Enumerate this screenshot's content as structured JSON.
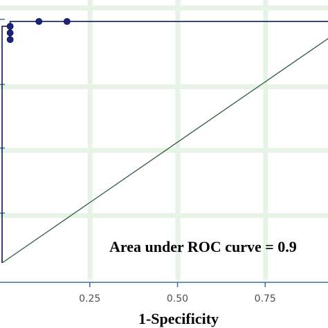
{
  "chart_data": {
    "type": "line",
    "title": "",
    "xlabel": "1-Specificity",
    "ylabel": "",
    "xlim": [
      0.0,
      1.0
    ],
    "ylim": [
      0.0,
      1.0
    ],
    "grid": true,
    "x_ticks": [
      0.25,
      0.5,
      0.75
    ],
    "x_tick_labels": [
      "0.25",
      "0.50",
      "0.75"
    ],
    "annotation": "Area under ROC curve = 0.9",
    "series": [
      {
        "values": [
          {
            "x": 0.0,
            "y": 0.0
          },
          {
            "x": 0.0,
            "y": 0.925
          },
          {
            "x": 0.0,
            "y": 0.952
          },
          {
            "x": 0.0,
            "y": 0.98
          },
          {
            "x": 0.023,
            "y": 0.98
          },
          {
            "x": 0.023,
            "y": 0.953
          },
          {
            "x": 0.023,
            "y": 0.925
          },
          {
            "x": 0.023,
            "y": 1.0
          },
          {
            "x": 0.105,
            "y": 1.0
          },
          {
            "x": 0.185,
            "y": 1.0
          },
          {
            "x": 1.0,
            "y": 1.0
          }
        ],
        "markers": [
          {
            "x": 0.023,
            "y": 0.98
          },
          {
            "x": 0.023,
            "y": 0.953
          },
          {
            "x": 0.023,
            "y": 0.925
          },
          {
            "x": 0.105,
            "y": 1.0
          },
          {
            "x": 0.185,
            "y": 1.0
          }
        ],
        "color": "#1f2f6b"
      },
      {
        "values": [
          {
            "x": 0.0,
            "y": 0.0
          },
          {
            "x": 1.0,
            "y": 1.0
          }
        ],
        "color": "#2f5d3a"
      }
    ],
    "colors": {
      "background": "#ffffff",
      "grid": "#e6f3e6",
      "axis": "#3b6fa3",
      "roc_line": "#1f2f6b",
      "reference_line": "#2f5d3a"
    }
  }
}
